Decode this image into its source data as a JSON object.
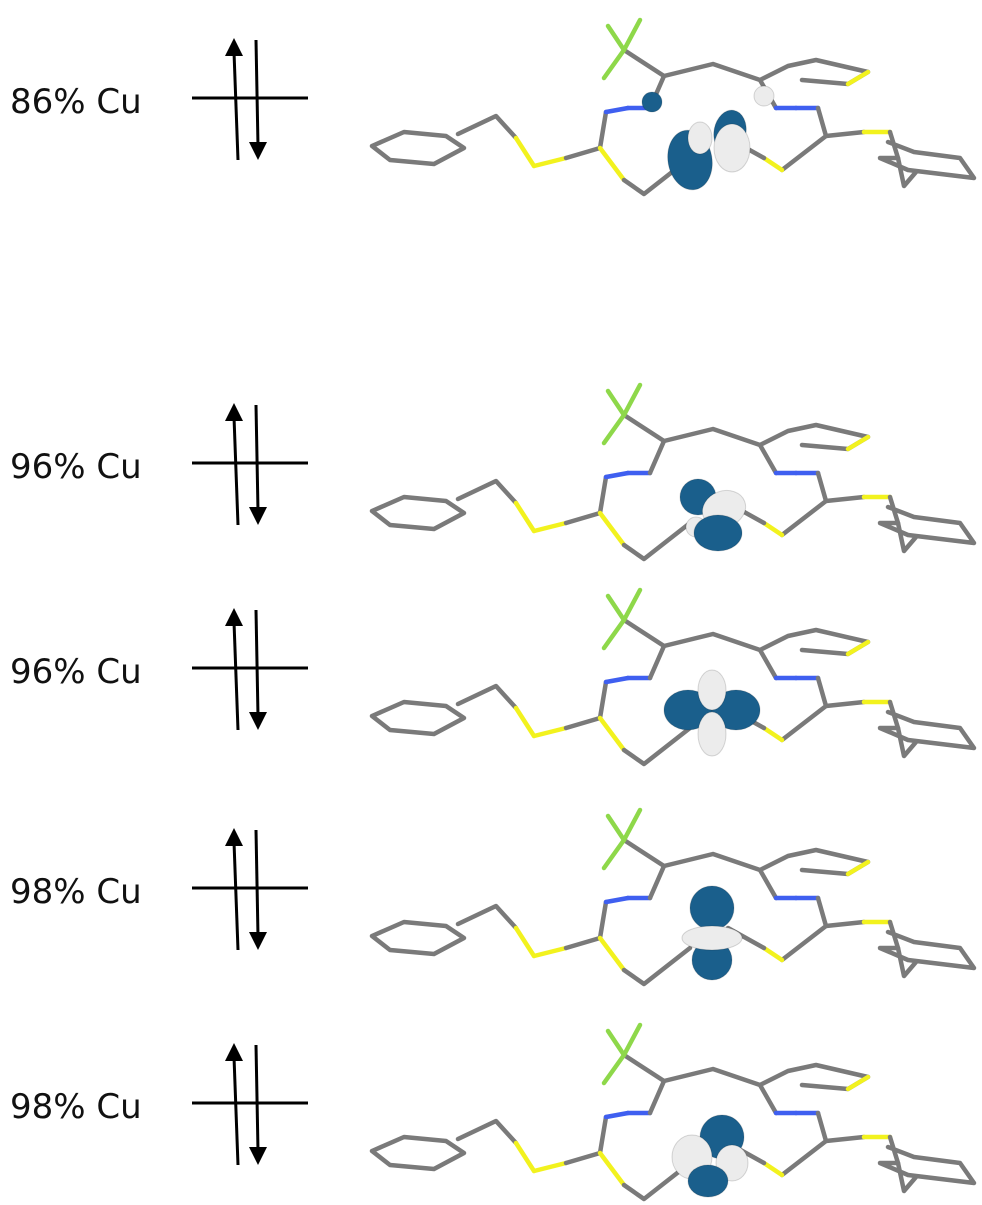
{
  "orbitals": [
    {
      "label": "86% Cu",
      "shape": "dxy-tilted",
      "lobe_color": "#1a5f8c",
      "alt_color": "#ececec"
    },
    {
      "label": "96% Cu",
      "shape": "dxz-tilted",
      "lobe_color": "#1a5f8c",
      "alt_color": "#ececec"
    },
    {
      "label": "96% Cu",
      "shape": "dx2-y2",
      "lobe_color": "#1a5f8c",
      "alt_color": "#ececec"
    },
    {
      "label": "98% Cu",
      "shape": "dz2",
      "lobe_color": "#1a5f8c",
      "alt_color": "#ececec"
    },
    {
      "label": "98% Cu",
      "shape": "dyz-tilted",
      "lobe_color": "#1a5f8c",
      "alt_color": "#ececec"
    }
  ],
  "colors": {
    "bond_carbon": "#7a7a7a",
    "bond_nitrogen": "#3f5ff0",
    "bond_sulfur": "#f2f21e",
    "bond_fluorine": "#8ed84a",
    "spin_arrow": "#000000"
  }
}
